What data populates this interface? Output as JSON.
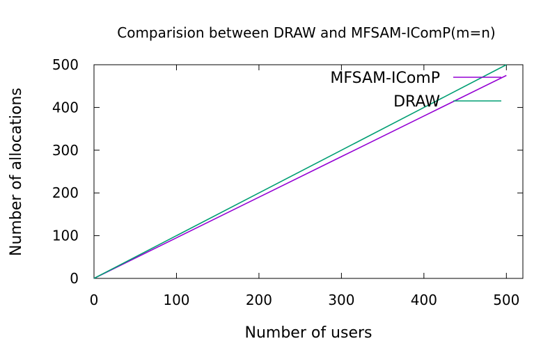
{
  "chart_data": {
    "type": "line",
    "title": "Comparision between DRAW and MFSAM-IComP(m=n)",
    "xlabel": "Number of users",
    "ylabel": "Number of allocations",
    "xlim": [
      0,
      520
    ],
    "ylim": [
      0,
      500
    ],
    "xticks": [
      0,
      100,
      200,
      300,
      400,
      500
    ],
    "yticks": [
      0,
      100,
      200,
      300,
      400,
      500
    ],
    "grid": false,
    "legend_position": "top-right",
    "series": [
      {
        "name": "MFSAM-IComP",
        "color": "#9400d3",
        "x": [
          0,
          100,
          200,
          300,
          400,
          500
        ],
        "y": [
          0,
          95,
          190,
          285,
          380,
          475
        ]
      },
      {
        "name": "DRAW",
        "color": "#009e73",
        "x": [
          0,
          100,
          200,
          300,
          400,
          500
        ],
        "y": [
          0,
          100,
          200,
          300,
          400,
          500
        ]
      }
    ]
  }
}
